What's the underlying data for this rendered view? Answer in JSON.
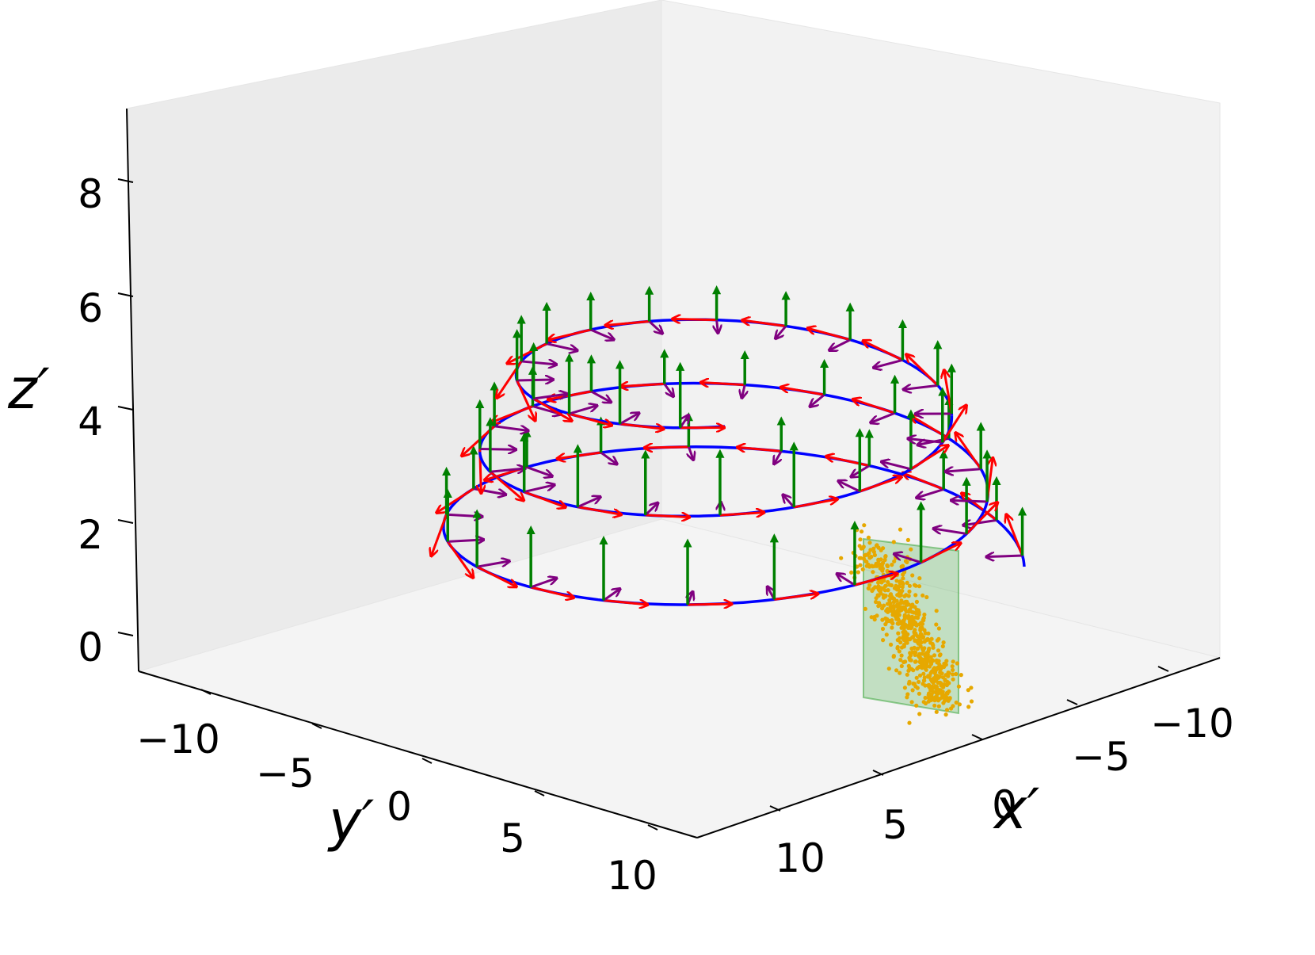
{
  "chart_data": {
    "type": "line",
    "plot_kind": "3d helix with tangent/normal/binormal frame arrows",
    "axes": {
      "x": {
        "label": "x′",
        "ticks": [
          "−10",
          "−5",
          "0",
          "5",
          "10"
        ],
        "range": [
          -12,
          12
        ]
      },
      "y": {
        "label": "y′",
        "ticks": [
          "−10",
          "−5",
          "0",
          "5",
          "10"
        ],
        "range": [
          -12,
          12
        ]
      },
      "z": {
        "label": "z′",
        "ticks": [
          "0",
          "2",
          "4",
          "6",
          "8"
        ],
        "range": [
          -0.5,
          9
        ]
      }
    },
    "grid": false,
    "legend": "none",
    "series": [
      {
        "kind": "curve",
        "color": "#0000ff",
        "description_values": {
          "start_z": 0,
          "end_z": 5.5,
          "radius_start": 9,
          "radius_end": 6,
          "turns": 2.75
        }
      },
      {
        "kind": "arrows",
        "color": "#ff0000"
      },
      {
        "kind": "arrows",
        "color": "#800080"
      },
      {
        "kind": "arrows",
        "color": "#008000"
      },
      {
        "kind": "point_cloud",
        "color": "#e6a800"
      },
      {
        "kind": "plane",
        "color": "#2ca02c"
      }
    ],
    "colors": {
      "pane_back": "#ebebeb",
      "pane_side": "#f2f2f2",
      "pane_floor": "#f4f4f4",
      "pane_edge": "#e6e6e6",
      "axis_line": "#000000"
    }
  }
}
